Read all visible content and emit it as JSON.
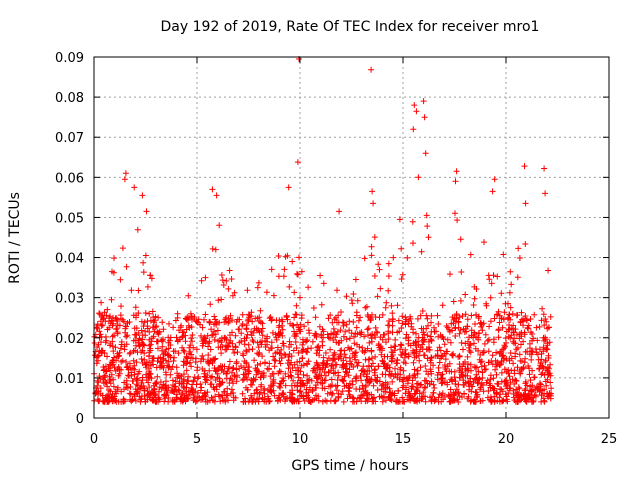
{
  "chart_data": {
    "type": "scatter",
    "title": "Day 192 of 2019, Rate Of TEC Index for receiver mro1",
    "xlabel": "GPS time / hours",
    "ylabel": "ROTI / TECUs",
    "xlim": [
      0,
      25
    ],
    "ylim": [
      0,
      0.09
    ],
    "x_ticks": [
      0,
      5,
      10,
      15,
      20,
      25
    ],
    "y_ticks": [
      0,
      0.01,
      0.02,
      0.03,
      0.04,
      0.05,
      0.06,
      0.07,
      0.08,
      0.09
    ],
    "x_tick_labels": [
      "0",
      "5",
      "10",
      "15",
      "20",
      "25"
    ],
    "y_tick_labels": [
      "0",
      "0.01",
      "0.02",
      "0.03",
      "0.04",
      "0.05",
      "0.06",
      "0.07",
      "0.08",
      "0.09"
    ],
    "grid": true,
    "marker": "+",
    "color": "#ff0000",
    "data_range_hours": [
      0,
      22.2
    ],
    "outliers": [
      {
        "x": 9.95,
        "y": 0.0895
      },
      {
        "x": 13.45,
        "y": 0.0868
      },
      {
        "x": 15.55,
        "y": 0.078
      },
      {
        "x": 15.65,
        "y": 0.0765
      },
      {
        "x": 15.5,
        "y": 0.072
      },
      {
        "x": 16.0,
        "y": 0.079
      },
      {
        "x": 16.05,
        "y": 0.075
      },
      {
        "x": 16.1,
        "y": 0.066
      },
      {
        "x": 15.75,
        "y": 0.06
      },
      {
        "x": 9.9,
        "y": 0.0638
      },
      {
        "x": 1.55,
        "y": 0.061
      },
      {
        "x": 1.5,
        "y": 0.0595
      },
      {
        "x": 1.95,
        "y": 0.0575
      },
      {
        "x": 17.6,
        "y": 0.0615
      },
      {
        "x": 17.55,
        "y": 0.059
      },
      {
        "x": 20.9,
        "y": 0.0628
      },
      {
        "x": 21.85,
        "y": 0.0622
      },
      {
        "x": 21.9,
        "y": 0.056
      },
      {
        "x": 9.45,
        "y": 0.0575
      },
      {
        "x": 5.75,
        "y": 0.057
      },
      {
        "x": 5.95,
        "y": 0.0555
      },
      {
        "x": 19.45,
        "y": 0.0595
      },
      {
        "x": 19.35,
        "y": 0.0565
      },
      {
        "x": 11.9,
        "y": 0.0515
      },
      {
        "x": 13.5,
        "y": 0.0565
      },
      {
        "x": 13.55,
        "y": 0.0535
      },
      {
        "x": 2.55,
        "y": 0.0515
      },
      {
        "x": 2.35,
        "y": 0.0555
      },
      {
        "x": 20.95,
        "y": 0.0535
      },
      {
        "x": 14.85,
        "y": 0.0495
      }
    ]
  }
}
